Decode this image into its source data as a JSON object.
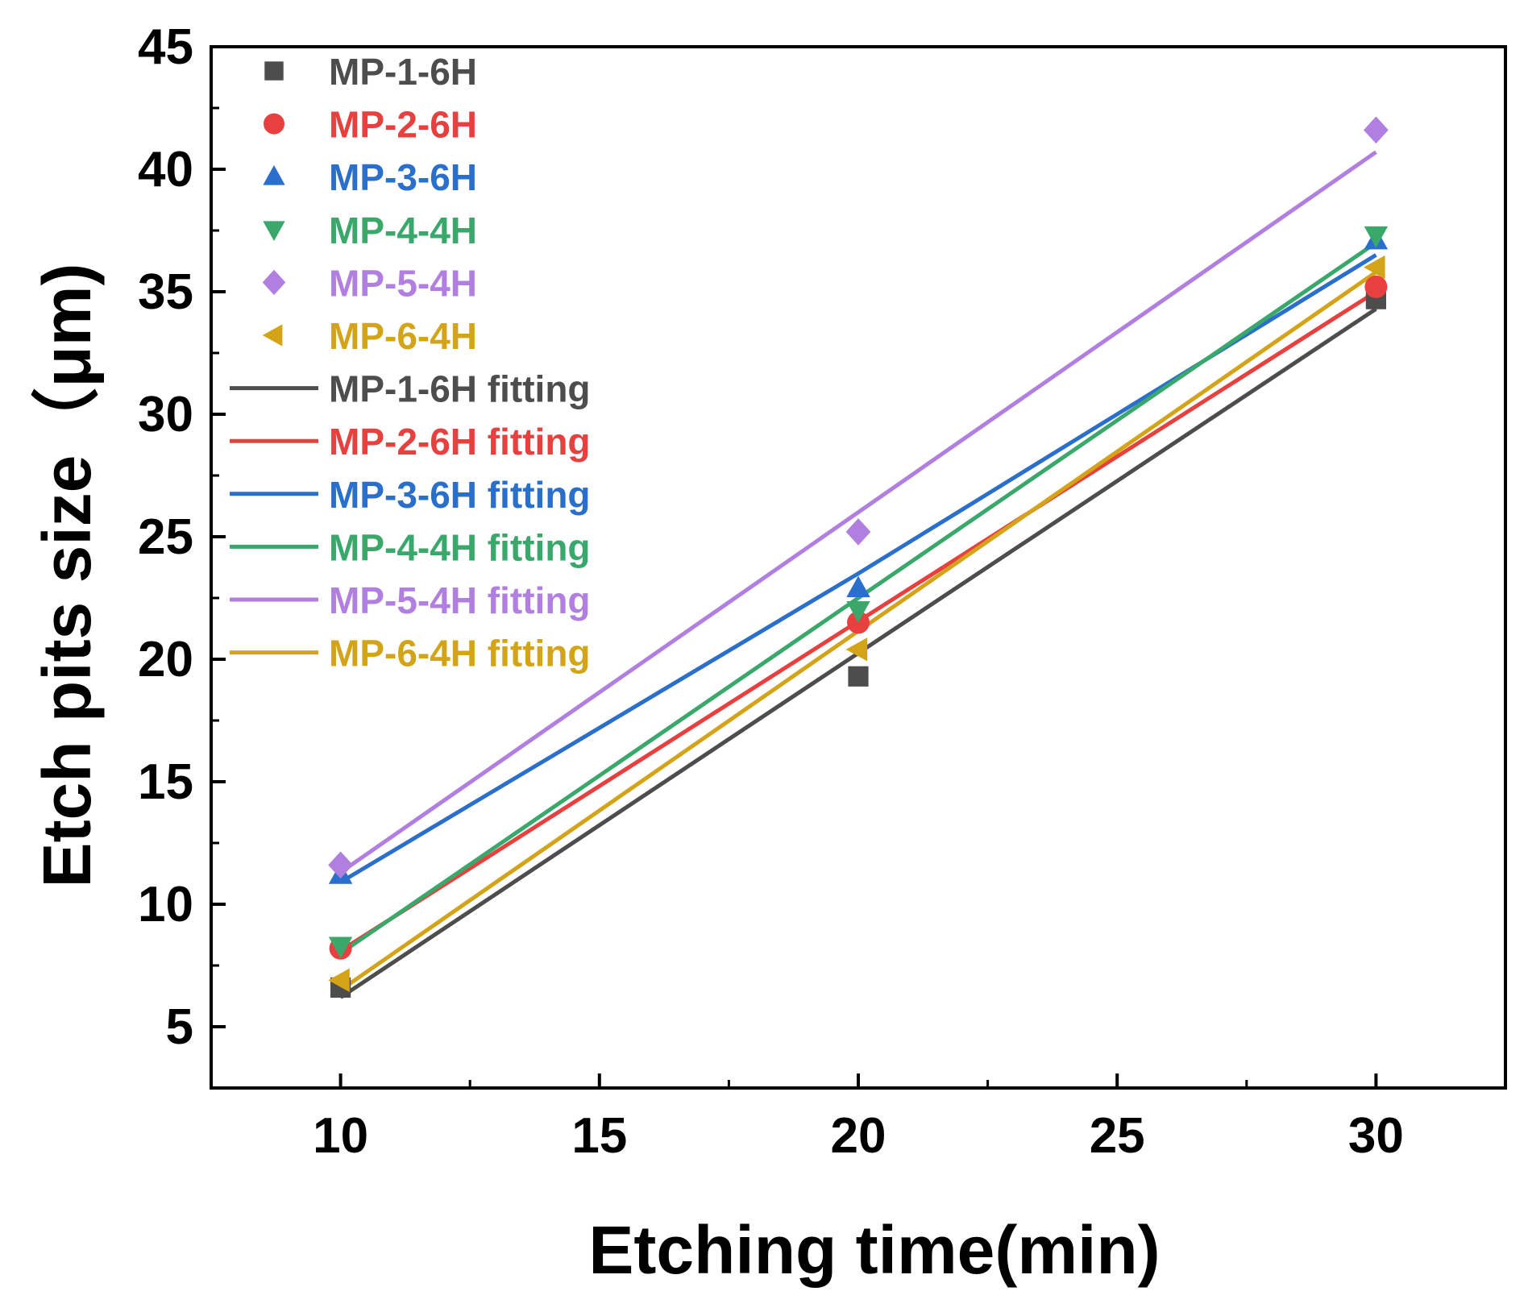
{
  "chart_data": {
    "type": "scatter",
    "title": "",
    "xlabel": "Etching time(min)",
    "ylabel": "Etch pits size（μm)",
    "xlim": [
      7.5,
      32.5
    ],
    "ylim": [
      2.5,
      45
    ],
    "xticks": [
      "10",
      "15",
      "20",
      "25",
      "30"
    ],
    "yticks": [
      "5",
      "10",
      "15",
      "20",
      "25",
      "30",
      "35",
      "40",
      "45"
    ],
    "legend_position": "top-left",
    "series": [
      {
        "name": "MP-1-6H",
        "fit_name": "MP-1-6H fitting",
        "color": "#4d4d4d",
        "marker": "square",
        "x": [
          10,
          20,
          30
        ],
        "y": [
          6.6,
          19.3,
          34.7
        ],
        "fit": [
          [
            10,
            6.2
          ],
          [
            30,
            34.3
          ]
        ]
      },
      {
        "name": "MP-2-6H",
        "fit_name": "MP-2-6H fitting",
        "color": "#e8403f",
        "marker": "circle",
        "x": [
          10,
          20,
          30
        ],
        "y": [
          8.2,
          21.5,
          35.2
        ],
        "fit": [
          [
            10,
            8.1
          ],
          [
            30,
            35.0
          ]
        ]
      },
      {
        "name": "MP-3-6H",
        "fit_name": "MP-3-6H fitting",
        "color": "#2a6fcc",
        "marker": "triangle-up",
        "x": [
          10,
          20,
          30
        ],
        "y": [
          11.2,
          22.9,
          37.1
        ],
        "fit": [
          [
            10,
            10.9
          ],
          [
            20,
            23.5
          ],
          [
            30,
            36.5
          ]
        ]
      },
      {
        "name": "MP-4-4H",
        "fit_name": "MP-4-4H fitting",
        "color": "#3aa86b",
        "marker": "triangle-down",
        "x": [
          10,
          20,
          30
        ],
        "y": [
          8.3,
          22.0,
          37.3
        ],
        "fit": [
          [
            10,
            8.0
          ],
          [
            30,
            37.0
          ]
        ]
      },
      {
        "name": "MP-5-4H",
        "fit_name": "MP-5-4H fitting",
        "color": "#b07fe0",
        "marker": "diamond",
        "x": [
          10,
          20,
          30
        ],
        "y": [
          11.6,
          25.2,
          41.6
        ],
        "fit": [
          [
            10,
            11.3
          ],
          [
            30,
            40.7
          ]
        ]
      },
      {
        "name": "MP-6-4H",
        "fit_name": "MP-6-4H fitting",
        "color": "#d4a418",
        "marker": "triangle-left",
        "x": [
          10,
          20,
          30
        ],
        "y": [
          6.9,
          20.4,
          36.0
        ],
        "fit": [
          [
            10,
            6.5
          ],
          [
            30,
            35.8
          ]
        ]
      }
    ]
  }
}
